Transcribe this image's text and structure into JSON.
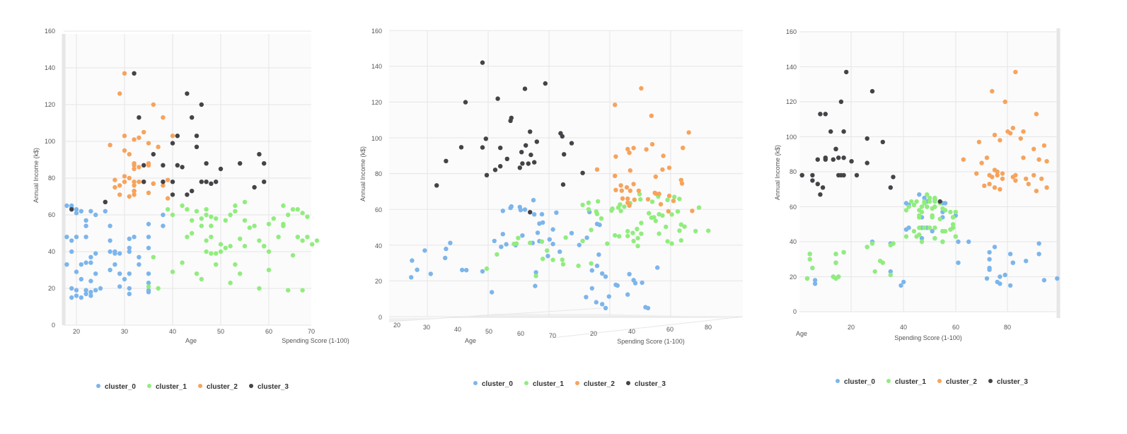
{
  "colors": {
    "cluster_0": "#7cb5ec",
    "cluster_1": "#90ed7d",
    "cluster_2": "#f7a35c",
    "cluster_3": "#434348",
    "grid": "#e6e6e6",
    "pane": "#f7f7f7"
  },
  "chart_data": [
    {
      "type": "scatter",
      "title": "",
      "xlabel": "Age",
      "ylabel": "Annual Income (k$)",
      "zlabel": "Spending Score (1-100)",
      "xlim": [
        18,
        70
      ],
      "ylim": [
        0,
        160
      ],
      "x_ticks": [
        "20",
        "30",
        "40",
        "50",
        "60",
        "70"
      ],
      "y_ticks": [
        "0",
        "20",
        "40",
        "60",
        "80",
        "100",
        "120",
        "140",
        "160"
      ],
      "legend": [
        "cluster_0",
        "cluster_1",
        "cluster_2",
        "cluster_3"
      ],
      "legend_position": "bottom",
      "grid": true
    },
    {
      "type": "scatter",
      "title": "",
      "xlabel": "Age",
      "ylabel": "Annual Income (k$)",
      "zlabel": "Spending Score (1-100)",
      "xlim": [
        18,
        70
      ],
      "ylim": [
        0,
        160
      ],
      "x_ticks": [
        "20",
        "30",
        "40",
        "50",
        "60",
        "70"
      ],
      "z_ticks": [
        "20",
        "40",
        "60",
        "80"
      ],
      "y_ticks": [
        "0",
        "20",
        "40",
        "60",
        "80",
        "100",
        "120",
        "140",
        "160"
      ],
      "legend": [
        "cluster_0",
        "cluster_1",
        "cluster_2",
        "cluster_3"
      ],
      "legend_position": "bottom",
      "grid": true
    },
    {
      "type": "scatter",
      "title": "",
      "xlabel": "Spending Score (1-100)",
      "ylabel": "Annual Income (k$)",
      "zlabel": "Age",
      "xlim": [
        0,
        100
      ],
      "ylim": [
        0,
        160
      ],
      "x_ticks": [
        "20",
        "40",
        "60",
        "80"
      ],
      "y_ticks": [
        "0",
        "20",
        "40",
        "60",
        "80",
        "100",
        "120",
        "140",
        "160"
      ],
      "legend": [
        "cluster_0",
        "cluster_1",
        "cluster_2",
        "cluster_3"
      ],
      "legend_position": "bottom",
      "grid": true
    }
  ],
  "clusters": {
    "cluster_0": [
      [
        19,
        15,
        39
      ],
      [
        21,
        15,
        81
      ],
      [
        20,
        16,
        6
      ],
      [
        23,
        16,
        77
      ],
      [
        31,
        17,
        40
      ],
      [
        22,
        17,
        76
      ],
      [
        35,
        18,
        6
      ],
      [
        23,
        18,
        94
      ],
      [
        24,
        19,
        3
      ],
      [
        22,
        19,
        72
      ],
      [
        35,
        19,
        14
      ],
      [
        20,
        19,
        99
      ],
      [
        19,
        20,
        15
      ],
      [
        25,
        20,
        77
      ],
      [
        31,
        20,
        13
      ],
      [
        29,
        21,
        79
      ],
      [
        35,
        23,
        35
      ],
      [
        23,
        24,
        73
      ],
      [
        21,
        25,
        5
      ],
      [
        30,
        25,
        73
      ],
      [
        31,
        28,
        82
      ],
      [
        35,
        28,
        61
      ],
      [
        24,
        28,
        14
      ],
      [
        29,
        28,
        82
      ],
      [
        20,
        29,
        87
      ],
      [
        27,
        30,
        73
      ],
      [
        33,
        33,
        4
      ],
      [
        21,
        33,
        92
      ],
      [
        18,
        33,
        14
      ],
      [
        28,
        33,
        81
      ],
      [
        22,
        34,
        17
      ],
      [
        23,
        34,
        73
      ],
      [
        33,
        37,
        26
      ],
      [
        23,
        37,
        75
      ],
      [
        29,
        39,
        35
      ],
      [
        28,
        39,
        92
      ],
      [
        24,
        39,
        36
      ],
      [
        19,
        40,
        61
      ],
      [
        28,
        40,
        28
      ],
      [
        31,
        40,
        65
      ],
      [
        27,
        40,
        55
      ],
      [
        31,
        42,
        47
      ],
      [
        35,
        42,
        52
      ],
      [
        27,
        46,
        51
      ],
      [
        19,
        46,
        55
      ],
      [
        31,
        47,
        41
      ],
      [
        22,
        48,
        47
      ],
      [
        32,
        48,
        59
      ],
      [
        20,
        48,
        42
      ],
      [
        18,
        48,
        59
      ],
      [
        35,
        48,
        49
      ],
      [
        22,
        54,
        59
      ],
      [
        27,
        54,
        47
      ],
      [
        38,
        54,
        55
      ],
      [
        35,
        55,
        60
      ],
      [
        22,
        57,
        55
      ],
      [
        24,
        60,
        49
      ],
      [
        26,
        62,
        55
      ],
      [
        20,
        61,
        42
      ],
      [
        23,
        62,
        41
      ],
      [
        20,
        63,
        49
      ],
      [
        19,
        64,
        52
      ],
      [
        18,
        65,
        48
      ],
      [
        38,
        60,
        52
      ],
      [
        26,
        67,
        46
      ],
      [
        21,
        62,
        56
      ],
      [
        19,
        65,
        50
      ]
    ],
    "cluster_1": [
      [
        64,
        19,
        3
      ],
      [
        67,
        19,
        14
      ],
      [
        58,
        20,
        15
      ],
      [
        37,
        20,
        13
      ],
      [
        35,
        21,
        35
      ],
      [
        52,
        23,
        29
      ],
      [
        46,
        25,
        5
      ],
      [
        54,
        28,
        14
      ],
      [
        45,
        28,
        32
      ],
      [
        40,
        29,
        31
      ],
      [
        60,
        30,
        4
      ],
      [
        53,
        33,
        4
      ],
      [
        49,
        33,
        14
      ],
      [
        42,
        34,
        17
      ],
      [
        36,
        37,
        26
      ],
      [
        65,
        38,
        35
      ],
      [
        48,
        39,
        36
      ],
      [
        49,
        39,
        28
      ],
      [
        50,
        40,
        55
      ],
      [
        47,
        40,
        47
      ],
      [
        51,
        42,
        52
      ],
      [
        55,
        43,
        60
      ],
      [
        59,
        43,
        60
      ],
      [
        50,
        44,
        46
      ],
      [
        69,
        44,
        46
      ],
      [
        67,
        46,
        55
      ],
      [
        47,
        46,
        55
      ],
      [
        54,
        47,
        58
      ],
      [
        68,
        48,
        48
      ],
      [
        48,
        48,
        59
      ],
      [
        57,
        54,
        51
      ],
      [
        63,
        54,
        46
      ],
      [
        48,
        54,
        59
      ],
      [
        46,
        54,
        46
      ],
      [
        47,
        60,
        49
      ],
      [
        43,
        63,
        45
      ],
      [
        40,
        60,
        52
      ],
      [
        47,
        63,
        52
      ],
      [
        66,
        63,
        50
      ],
      [
        48,
        59,
        51
      ],
      [
        70,
        46,
        56
      ],
      [
        44,
        50,
        59
      ],
      [
        68,
        59,
        55
      ],
      [
        63,
        65,
        52
      ],
      [
        53,
        65,
        52
      ],
      [
        49,
        58,
        46
      ],
      [
        45,
        62,
        54
      ],
      [
        43,
        48,
        46
      ],
      [
        60,
        55,
        46
      ],
      [
        67,
        61,
        44
      ],
      [
        59,
        43,
        41
      ],
      [
        55,
        57,
        58
      ],
      [
        52,
        60,
        47
      ],
      [
        62,
        48,
        50
      ],
      [
        56,
        53,
        54
      ],
      [
        64,
        60,
        42
      ],
      [
        53,
        62,
        48
      ],
      [
        42,
        65,
        50
      ],
      [
        58,
        46,
        44
      ],
      [
        61,
        58,
        56
      ],
      [
        63,
        55,
        51
      ],
      [
        65,
        63,
        43
      ],
      [
        46,
        58,
        41
      ],
      [
        51,
        57,
        60
      ],
      [
        39,
        63,
        48
      ],
      [
        60,
        40,
        55
      ],
      [
        52,
        43,
        45
      ],
      [
        44,
        57,
        47
      ],
      [
        55,
        67,
        49
      ],
      [
        66,
        48,
        52
      ]
    ],
    "cluster_2": [
      [
        39,
        69,
        91
      ],
      [
        31,
        70,
        77
      ],
      [
        29,
        71,
        95
      ],
      [
        32,
        71,
        75
      ],
      [
        35,
        72,
        71
      ],
      [
        32,
        73,
        88
      ],
      [
        32,
        73,
        73
      ],
      [
        28,
        75,
        83
      ],
      [
        32,
        76,
        93
      ],
      [
        29,
        76,
        87
      ],
      [
        38,
        76,
        78
      ],
      [
        36,
        77,
        74
      ],
      [
        36,
        77,
        82
      ],
      [
        33,
        78,
        90
      ],
      [
        30,
        78,
        73
      ],
      [
        32,
        78,
        76
      ],
      [
        34,
        78,
        83
      ],
      [
        28,
        79,
        78
      ],
      [
        31,
        80,
        76
      ],
      [
        30,
        81,
        75
      ],
      [
        33,
        86,
        95
      ],
      [
        32,
        87,
        63
      ],
      [
        35,
        87,
        92
      ],
      [
        35,
        88,
        72
      ],
      [
        32,
        88,
        86
      ],
      [
        31,
        93,
        90
      ],
      [
        30,
        95,
        94
      ],
      [
        35,
        99,
        85
      ],
      [
        32,
        101,
        75
      ],
      [
        40,
        103,
        86
      ],
      [
        27,
        98,
        77
      ],
      [
        33,
        102,
        81
      ],
      [
        30,
        103,
        80
      ],
      [
        34,
        105,
        82
      ],
      [
        38,
        113,
        91
      ],
      [
        29,
        126,
        74
      ],
      [
        30,
        137,
        83
      ],
      [
        36,
        120,
        79
      ],
      [
        32,
        85,
        70
      ],
      [
        37,
        97,
        69
      ],
      [
        39,
        79,
        68
      ]
    ],
    "cluster_3": [
      [
        44,
        73,
        7
      ],
      [
        48,
        77,
        36
      ],
      [
        19,
        63,
        54
      ],
      [
        26,
        67,
        8
      ],
      [
        43,
        71,
        35
      ],
      [
        40,
        71,
        9
      ],
      [
        40,
        78,
        22
      ],
      [
        38,
        78,
        17
      ],
      [
        34,
        78,
        1
      ],
      [
        57,
        75,
        5
      ],
      [
        47,
        78,
        16
      ],
      [
        46,
        78,
        15
      ],
      [
        59,
        78,
        1
      ],
      [
        38,
        87,
        10
      ],
      [
        41,
        87,
        13
      ],
      [
        54,
        88,
        10
      ],
      [
        47,
        88,
        15
      ],
      [
        36,
        93,
        14
      ],
      [
        45,
        97,
        32
      ],
      [
        40,
        99,
        26
      ],
      [
        45,
        103,
        12
      ],
      [
        44,
        113,
        8
      ],
      [
        46,
        120,
        16
      ],
      [
        41,
        103,
        17
      ],
      [
        58,
        93,
        14
      ],
      [
        42,
        86,
        20
      ],
      [
        34,
        87,
        7
      ],
      [
        59,
        88,
        17
      ],
      [
        50,
        85,
        26
      ],
      [
        43,
        126,
        28
      ],
      [
        32,
        137,
        18
      ],
      [
        49,
        78,
        5
      ],
      [
        33,
        113,
        10
      ]
    ]
  }
}
